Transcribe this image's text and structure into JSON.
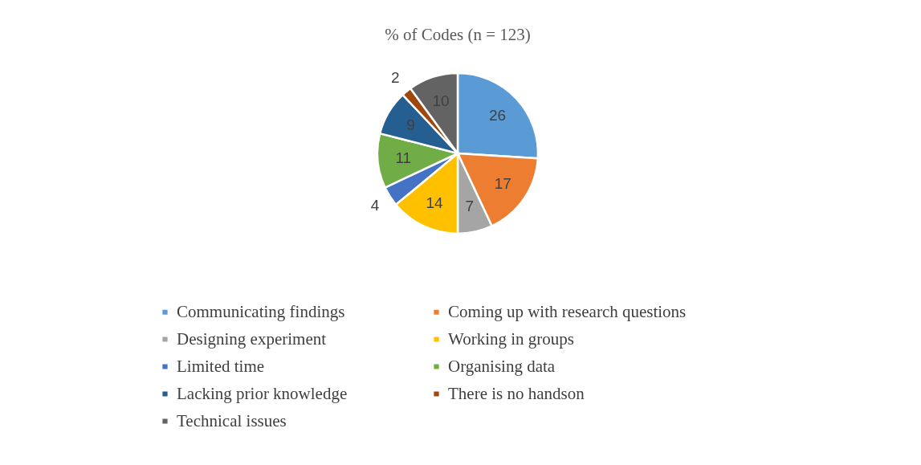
{
  "chart_data": {
    "type": "pie",
    "title": "% of Codes (n = 123)",
    "categories": [
      "Communicating findings",
      "Coming up with research questions",
      "Designing experiment",
      "Working in groups",
      "Limited time",
      "Organising data",
      "Lacking prior knowledge",
      "There is no handson",
      "Technical issues"
    ],
    "values": [
      26,
      17,
      7,
      14,
      4,
      11,
      9,
      2,
      10
    ],
    "colors": [
      "#5b9bd5",
      "#ed7d31",
      "#a5a5a5",
      "#ffc000",
      "#4472c4",
      "#70ad47",
      "#255e91",
      "#9e480e",
      "#636363"
    ],
    "data_labels": true,
    "legend": "bottom"
  }
}
